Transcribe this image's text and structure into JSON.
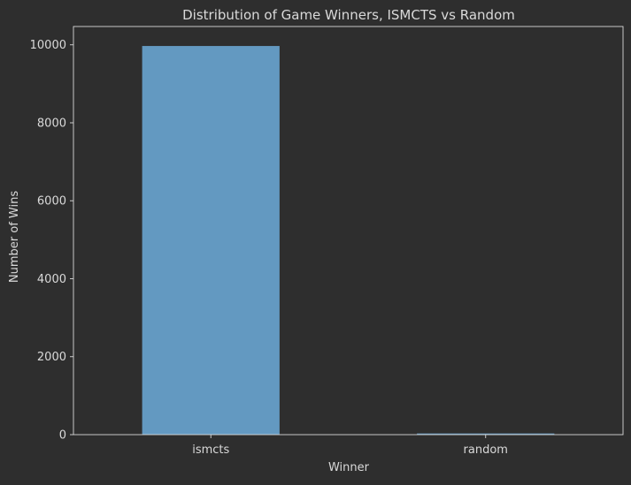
{
  "chart_data": {
    "type": "bar",
    "title": "Distribution of Game Winners, ISMCTS vs Random",
    "xlabel": "Winner",
    "ylabel": "Number of Wins",
    "categories": [
      "ismcts",
      "random"
    ],
    "values": [
      9970,
      30
    ],
    "ylim": [
      0,
      10470
    ],
    "yticks": [
      0,
      2000,
      4000,
      6000,
      8000,
      10000
    ],
    "grid": false,
    "legend": "none"
  },
  "colors": {
    "background": "#2e2e2e",
    "bar": "#6399c1",
    "axis": "#d9d9d9",
    "text": "#d9d9d9"
  }
}
